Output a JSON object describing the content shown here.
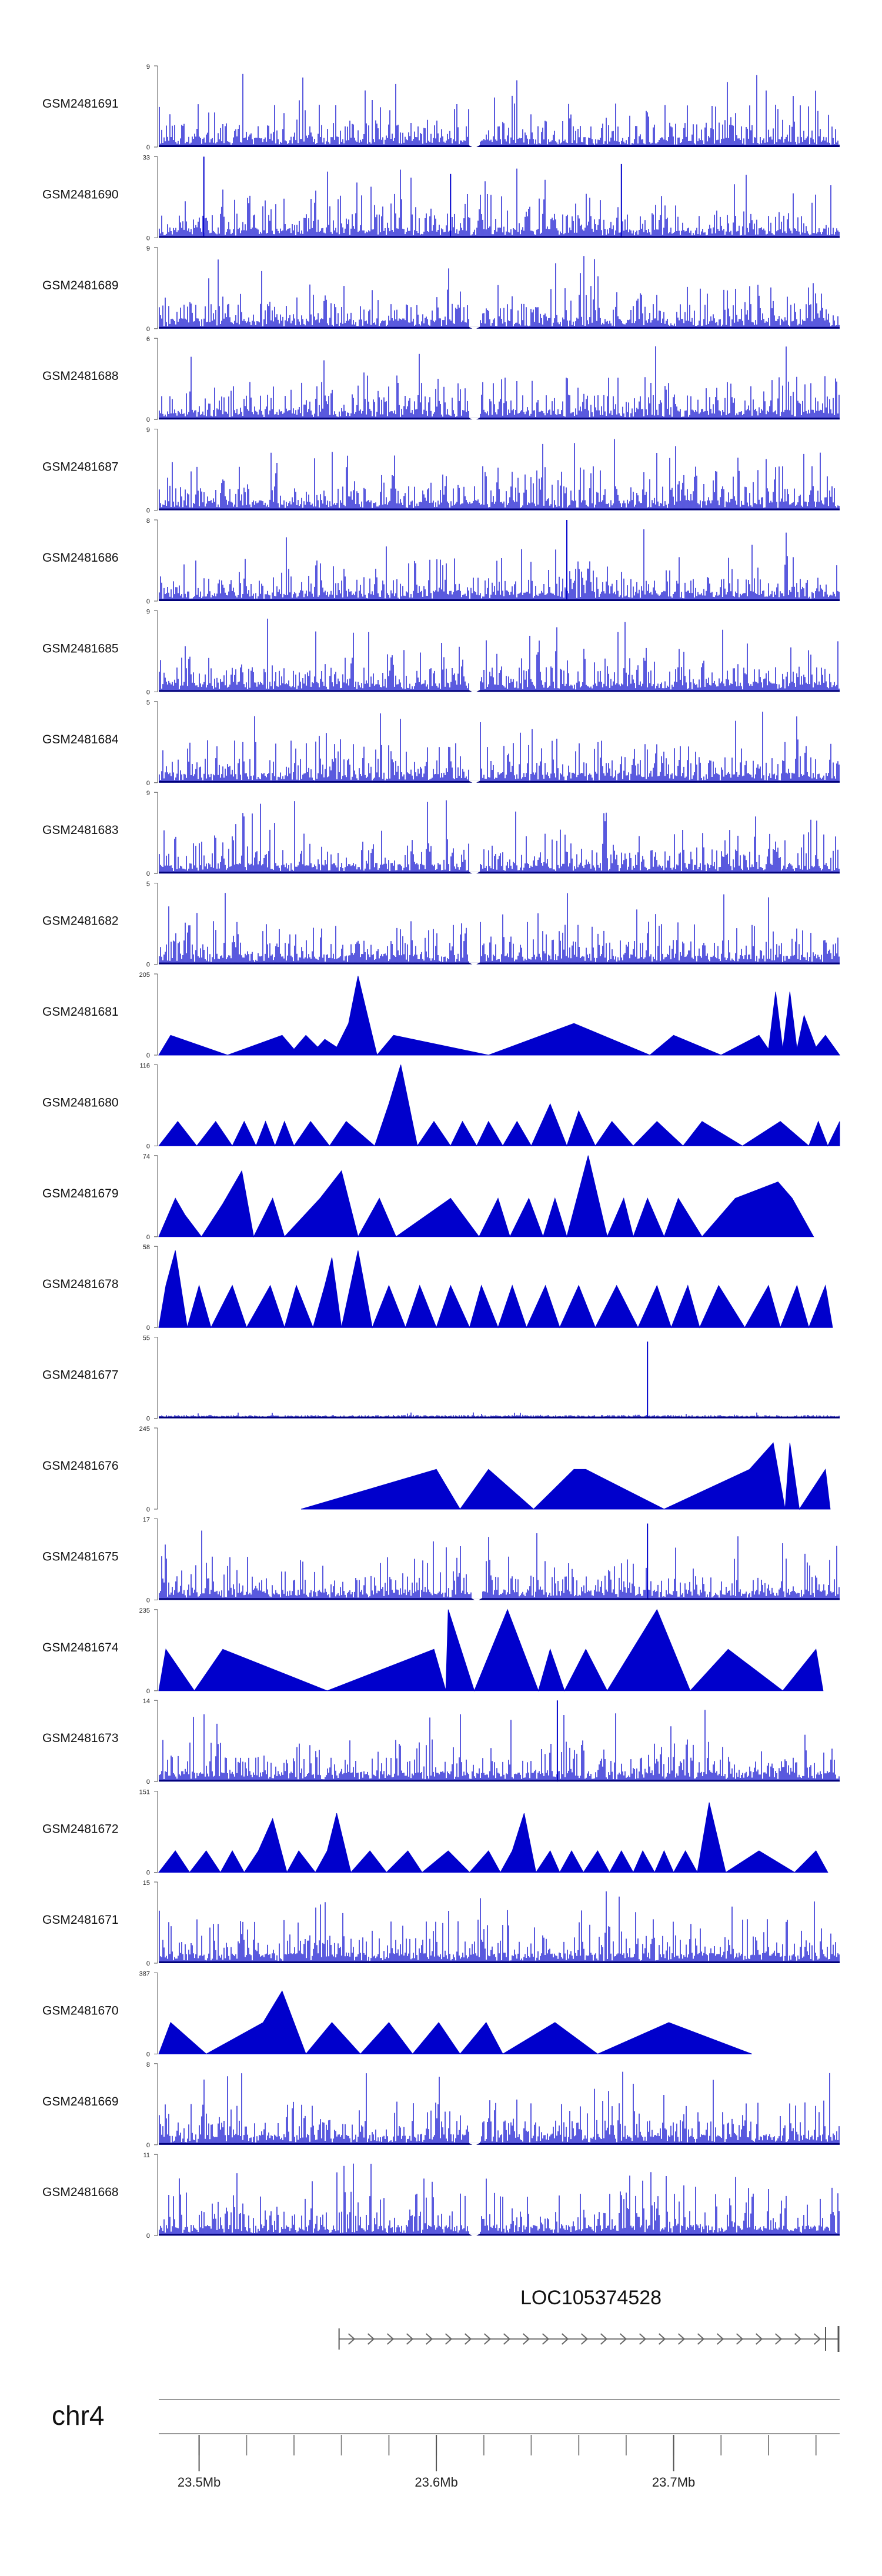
{
  "figure": {
    "chromosome": "chr4"
  },
  "colors": {
    "signal": "#0000CC",
    "baseline": "#00007A",
    "axis": "#555555",
    "text": "#111111"
  },
  "chart_data": {
    "type": "area",
    "title": "",
    "genome_range": {
      "chrom": "chr4",
      "start_mb": 23.483,
      "end_mb": 23.77
    },
    "tracks": [
      {
        "name": "GSM2481691",
        "ymin": "0",
        "ymax": 9,
        "mode": "dense",
        "seed": 11,
        "gap_mb": 23.616
      },
      {
        "name": "GSM2481690",
        "ymin": "0",
        "ymax": 33,
        "mode": "dense",
        "seed": 12,
        "gap_mb": null,
        "peaks": [
          [
            23.502,
            33
          ],
          [
            23.606,
            26
          ],
          [
            23.678,
            30
          ]
        ]
      },
      {
        "name": "GSM2481689",
        "ymin": "0",
        "ymax": 9,
        "mode": "dense",
        "seed": 13,
        "gap_mb": 23.616
      },
      {
        "name": "GSM2481688",
        "ymin": "0",
        "ymax": 6,
        "mode": "dense",
        "seed": 14,
        "gap_mb": 23.616
      },
      {
        "name": "GSM2481687",
        "ymin": "0",
        "ymax": 9,
        "mode": "dense",
        "seed": 15,
        "gap_mb": null
      },
      {
        "name": "GSM2481686",
        "ymin": "0",
        "ymax": 8,
        "mode": "dense",
        "seed": 16,
        "gap_mb": null,
        "peaks": [
          [
            23.655,
            8
          ]
        ]
      },
      {
        "name": "GSM2481685",
        "ymin": "0",
        "ymax": 9,
        "mode": "dense",
        "seed": 17,
        "gap_mb": 23.616
      },
      {
        "name": "GSM2481684",
        "ymin": "0",
        "ymax": 5,
        "mode": "dense",
        "seed": 18,
        "gap_mb": 23.616
      },
      {
        "name": "GSM2481683",
        "ymin": "0",
        "ymax": 9,
        "mode": "dense",
        "seed": 19,
        "gap_mb": 23.616
      },
      {
        "name": "GSM2481682",
        "ymin": "0",
        "ymax": 5,
        "mode": "dense",
        "seed": 20,
        "gap_mb": 23.616
      },
      {
        "name": "GSM2481681",
        "ymin": "0",
        "ymax": 205,
        "mode": "sparse",
        "seed": 21,
        "points": [
          [
            23.483,
            0
          ],
          [
            23.488,
            50
          ],
          [
            23.512,
            0
          ],
          [
            23.535,
            50
          ],
          [
            23.54,
            15
          ],
          [
            23.545,
            50
          ],
          [
            23.55,
            20
          ],
          [
            23.553,
            40
          ],
          [
            23.558,
            20
          ],
          [
            23.563,
            80
          ],
          [
            23.567,
            200
          ],
          [
            23.575,
            0
          ],
          [
            23.582,
            50
          ],
          [
            23.622,
            0
          ],
          [
            23.658,
            80
          ],
          [
            23.69,
            0
          ],
          [
            23.7,
            50
          ],
          [
            23.72,
            0
          ],
          [
            23.736,
            50
          ],
          [
            23.74,
            15
          ],
          [
            23.743,
            160
          ],
          [
            23.746,
            15
          ],
          [
            23.749,
            160
          ],
          [
            23.752,
            15
          ],
          [
            23.755,
            100
          ],
          [
            23.76,
            20
          ],
          [
            23.764,
            50
          ],
          [
            23.77,
            0
          ]
        ]
      },
      {
        "name": "GSM2481680",
        "ymin": "0",
        "ymax": 116,
        "mode": "sparse",
        "seed": 22,
        "points": [
          [
            23.483,
            0
          ],
          [
            23.491,
            35
          ],
          [
            23.499,
            0
          ],
          [
            23.507,
            35
          ],
          [
            23.514,
            0
          ],
          [
            23.519,
            35
          ],
          [
            23.524,
            0
          ],
          [
            23.528,
            35
          ],
          [
            23.532,
            0
          ],
          [
            23.536,
            35
          ],
          [
            23.54,
            0
          ],
          [
            23.547,
            35
          ],
          [
            23.555,
            0
          ],
          [
            23.562,
            35
          ],
          [
            23.574,
            0
          ],
          [
            23.58,
            60
          ],
          [
            23.585,
            116
          ],
          [
            23.592,
            0
          ],
          [
            23.599,
            35
          ],
          [
            23.606,
            0
          ],
          [
            23.611,
            35
          ],
          [
            23.617,
            0
          ],
          [
            23.622,
            35
          ],
          [
            23.628,
            0
          ],
          [
            23.634,
            35
          ],
          [
            23.64,
            0
          ],
          [
            23.648,
            60
          ],
          [
            23.655,
            0
          ],
          [
            23.66,
            50
          ],
          [
            23.667,
            0
          ],
          [
            23.674,
            35
          ],
          [
            23.683,
            0
          ],
          [
            23.693,
            35
          ],
          [
            23.704,
            0
          ],
          [
            23.712,
            35
          ],
          [
            23.729,
            0
          ],
          [
            23.745,
            35
          ],
          [
            23.757,
            0
          ],
          [
            23.761,
            35
          ],
          [
            23.765,
            0
          ],
          [
            23.77,
            35
          ]
        ]
      },
      {
        "name": "GSM2481679",
        "ymin": "0",
        "ymax": 74,
        "mode": "sparse",
        "seed": 23,
        "points": [
          [
            23.483,
            0
          ],
          [
            23.49,
            35
          ],
          [
            23.494,
            20
          ],
          [
            23.501,
            0
          ],
          [
            23.51,
            30
          ],
          [
            23.518,
            60
          ],
          [
            23.523,
            0
          ],
          [
            23.531,
            35
          ],
          [
            23.536,
            0
          ],
          [
            23.551,
            35
          ],
          [
            23.56,
            60
          ],
          [
            23.567,
            0
          ],
          [
            23.576,
            35
          ],
          [
            23.583,
            0
          ],
          [
            23.606,
            35
          ],
          [
            23.618,
            0
          ],
          [
            23.626,
            35
          ],
          [
            23.631,
            0
          ],
          [
            23.639,
            35
          ],
          [
            23.645,
            0
          ],
          [
            23.65,
            35
          ],
          [
            23.655,
            0
          ],
          [
            23.664,
            74
          ],
          [
            23.672,
            0
          ],
          [
            23.679,
            35
          ],
          [
            23.683,
            0
          ],
          [
            23.689,
            35
          ],
          [
            23.696,
            0
          ],
          [
            23.702,
            35
          ],
          [
            23.712,
            0
          ],
          [
            23.726,
            35
          ],
          [
            23.744,
            50
          ],
          [
            23.75,
            35
          ],
          [
            23.759,
            0
          ]
        ]
      },
      {
        "name": "GSM2481678",
        "ymin": "0",
        "ymax": 58,
        "mode": "sparse",
        "seed": 24,
        "points": [
          [
            23.483,
            0
          ],
          [
            23.486,
            30
          ],
          [
            23.49,
            55
          ],
          [
            23.495,
            0
          ],
          [
            23.5,
            30
          ],
          [
            23.505,
            0
          ],
          [
            23.514,
            30
          ],
          [
            23.52,
            0
          ],
          [
            23.53,
            30
          ],
          [
            23.536,
            0
          ],
          [
            23.541,
            30
          ],
          [
            23.548,
            0
          ],
          [
            23.553,
            30
          ],
          [
            23.556,
            50
          ],
          [
            23.56,
            0
          ],
          [
            23.567,
            55
          ],
          [
            23.573,
            0
          ],
          [
            23.58,
            30
          ],
          [
            23.587,
            0
          ],
          [
            23.593,
            30
          ],
          [
            23.6,
            0
          ],
          [
            23.606,
            30
          ],
          [
            23.614,
            0
          ],
          [
            23.619,
            30
          ],
          [
            23.626,
            0
          ],
          [
            23.632,
            30
          ],
          [
            23.638,
            0
          ],
          [
            23.646,
            30
          ],
          [
            23.652,
            0
          ],
          [
            23.66,
            30
          ],
          [
            23.667,
            0
          ],
          [
            23.676,
            30
          ],
          [
            23.685,
            0
          ],
          [
            23.693,
            30
          ],
          [
            23.699,
            0
          ],
          [
            23.706,
            30
          ],
          [
            23.711,
            0
          ],
          [
            23.719,
            30
          ],
          [
            23.73,
            0
          ],
          [
            23.74,
            30
          ],
          [
            23.745,
            0
          ],
          [
            23.752,
            30
          ],
          [
            23.757,
            0
          ],
          [
            23.764,
            30
          ],
          [
            23.767,
            0
          ]
        ]
      },
      {
        "name": "GSM2481677",
        "ymin": "0",
        "ymax": 55,
        "mode": "dense",
        "seed": 25,
        "gap_mb": null,
        "scale": 0.08,
        "peaks": [
          [
            23.689,
            52
          ]
        ]
      },
      {
        "name": "GSM2481676",
        "ymin": "0",
        "ymax": 245,
        "mode": "sparse",
        "seed": 26,
        "points": [
          [
            23.543,
            0
          ],
          [
            23.6,
            120
          ],
          [
            23.61,
            0
          ],
          [
            23.622,
            120
          ],
          [
            23.641,
            0
          ],
          [
            23.658,
            120
          ],
          [
            23.663,
            120
          ],
          [
            23.696,
            0
          ],
          [
            23.732,
            120
          ],
          [
            23.742,
            200
          ],
          [
            23.747,
            0
          ],
          [
            23.749,
            200
          ],
          [
            23.753,
            0
          ],
          [
            23.764,
            120
          ],
          [
            23.766,
            0
          ]
        ]
      },
      {
        "name": "GSM2481675",
        "ymin": "0",
        "ymax": 17,
        "mode": "dense",
        "seed": 27,
        "gap_mb": 23.617,
        "peaks": [
          [
            23.689,
            16
          ]
        ]
      },
      {
        "name": "GSM2481674",
        "ymin": "0",
        "ymax": 235,
        "mode": "sparse",
        "seed": 28,
        "points": [
          [
            23.483,
            0
          ],
          [
            23.486,
            120
          ],
          [
            23.498,
            0
          ],
          [
            23.51,
            120
          ],
          [
            23.554,
            0
          ],
          [
            23.599,
            120
          ],
          [
            23.604,
            0
          ],
          [
            23.605,
            235
          ],
          [
            23.616,
            0
          ],
          [
            23.63,
            235
          ],
          [
            23.643,
            0
          ],
          [
            23.648,
            120
          ],
          [
            23.654,
            0
          ],
          [
            23.663,
            120
          ],
          [
            23.672,
            0
          ],
          [
            23.693,
            235
          ],
          [
            23.707,
            0
          ],
          [
            23.723,
            120
          ],
          [
            23.746,
            0
          ],
          [
            23.76,
            120
          ],
          [
            23.763,
            0
          ]
        ]
      },
      {
        "name": "GSM2481673",
        "ymin": "0",
        "ymax": 14,
        "mode": "dense",
        "seed": 29,
        "gap_mb": null,
        "peaks": [
          [
            23.651,
            14
          ]
        ]
      },
      {
        "name": "GSM2481672",
        "ymin": "0",
        "ymax": 151,
        "mode": "sparse",
        "seed": 30,
        "points": [
          [
            23.483,
            0
          ],
          [
            23.49,
            40
          ],
          [
            23.496,
            0
          ],
          [
            23.503,
            40
          ],
          [
            23.509,
            0
          ],
          [
            23.514,
            40
          ],
          [
            23.519,
            0
          ],
          [
            23.525,
            40
          ],
          [
            23.531,
            100
          ],
          [
            23.537,
            0
          ],
          [
            23.542,
            40
          ],
          [
            23.549,
            0
          ],
          [
            23.554,
            40
          ],
          [
            23.558,
            110
          ],
          [
            23.564,
            0
          ],
          [
            23.572,
            40
          ],
          [
            23.579,
            0
          ],
          [
            23.588,
            40
          ],
          [
            23.594,
            0
          ],
          [
            23.605,
            40
          ],
          [
            23.614,
            0
          ],
          [
            23.622,
            40
          ],
          [
            23.627,
            0
          ],
          [
            23.632,
            40
          ],
          [
            23.637,
            110
          ],
          [
            23.642,
            0
          ],
          [
            23.648,
            40
          ],
          [
            23.652,
            0
          ],
          [
            23.657,
            40
          ],
          [
            23.662,
            0
          ],
          [
            23.668,
            40
          ],
          [
            23.673,
            0
          ],
          [
            23.678,
            40
          ],
          [
            23.683,
            0
          ],
          [
            23.687,
            40
          ],
          [
            23.692,
            0
          ],
          [
            23.696,
            40
          ],
          [
            23.7,
            0
          ],
          [
            23.705,
            40
          ],
          [
            23.71,
            0
          ],
          [
            23.715,
            130
          ],
          [
            23.722,
            0
          ],
          [
            23.736,
            40
          ],
          [
            23.751,
            0
          ],
          [
            23.76,
            40
          ],
          [
            23.765,
            0
          ]
        ]
      },
      {
        "name": "GSM2481671",
        "ymin": "0",
        "ymax": 15,
        "mode": "dense",
        "seed": 31,
        "gap_mb": null
      },
      {
        "name": "GSM2481670",
        "ymin": "0",
        "ymax": 387,
        "mode": "sparse",
        "seed": 32,
        "points": [
          [
            23.483,
            0
          ],
          [
            23.488,
            150
          ],
          [
            23.503,
            0
          ],
          [
            23.527,
            150
          ],
          [
            23.535,
            300
          ],
          [
            23.545,
            0
          ],
          [
            23.556,
            150
          ],
          [
            23.568,
            0
          ],
          [
            23.58,
            150
          ],
          [
            23.59,
            0
          ],
          [
            23.601,
            150
          ],
          [
            23.61,
            0
          ],
          [
            23.621,
            150
          ],
          [
            23.628,
            0
          ],
          [
            23.65,
            150
          ],
          [
            23.668,
            0
          ],
          [
            23.698,
            150
          ],
          [
            23.733,
            0
          ]
        ]
      },
      {
        "name": "GSM2481669",
        "ymin": "0",
        "ymax": 8,
        "mode": "dense",
        "seed": 33,
        "gap_mb": 23.616
      },
      {
        "name": "GSM2481668",
        "ymin": "0",
        "ymax": 11,
        "mode": "dense",
        "seed": 34,
        "gap_mb": 23.616
      }
    ],
    "gene": {
      "name": "LOC105374528",
      "start_mb": 23.559,
      "end_mb": 23.77,
      "strand": "+"
    },
    "axis": {
      "ticks_mb": [
        23.5,
        23.6,
        23.7
      ],
      "tick_labels": [
        "23.5Mb",
        "23.6Mb",
        "23.7Mb"
      ]
    }
  }
}
